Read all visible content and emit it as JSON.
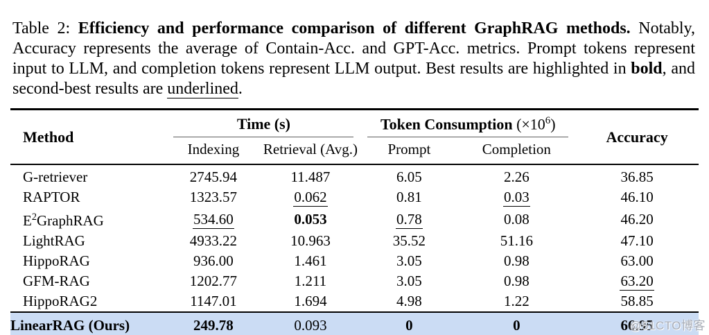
{
  "caption": {
    "prefix": "Table 2: ",
    "bold_title": "Efficiency and performance comparison of different GraphRAG methods.",
    "after_title": " Notably, Accuracy represents the average of Contain-Acc. and GPT-Acc. metrics. Prompt tokens represent input to LLM, and completion tokens represent LLM output. Best results are highlighted in ",
    "bold_word": "bold",
    "mid": ", and second-best results are ",
    "underlined_word": "underlined",
    "end": "."
  },
  "table": {
    "header": {
      "method": "Method",
      "time_group": "Time (s)",
      "token_group": "Token Consumption",
      "token_math_open": " (×10",
      "token_math_sup": "6",
      "token_math_close": ")",
      "accuracy": "Accuracy",
      "sub": [
        "Indexing",
        "Retrieval (Avg.)",
        "Prompt",
        "Completion"
      ]
    },
    "rows": [
      {
        "method": "G-retriever",
        "cells": [
          {
            "t": "2745.94"
          },
          {
            "t": "11.487"
          },
          {
            "t": "6.05"
          },
          {
            "t": "2.26"
          },
          {
            "t": "36.85"
          }
        ]
      },
      {
        "method": "RAPTOR",
        "cells": [
          {
            "t": "1323.57"
          },
          {
            "t": "0.062",
            "u": true
          },
          {
            "t": "0.81"
          },
          {
            "t": "0.03",
            "u": true
          },
          {
            "t": "46.10"
          }
        ]
      },
      {
        "method": "E^2^GraphRAG",
        "cells": [
          {
            "t": "534.60",
            "u": true
          },
          {
            "t": "0.053",
            "b": true
          },
          {
            "t": "0.78",
            "u": true
          },
          {
            "t": "0.08"
          },
          {
            "t": "46.20"
          }
        ]
      },
      {
        "method": "LightRAG",
        "cells": [
          {
            "t": "4933.22"
          },
          {
            "t": "10.963"
          },
          {
            "t": "35.52"
          },
          {
            "t": "51.16"
          },
          {
            "t": "47.10"
          }
        ]
      },
      {
        "method": "HippoRAG",
        "cells": [
          {
            "t": "936.00"
          },
          {
            "t": "1.461"
          },
          {
            "t": "3.05"
          },
          {
            "t": "0.98"
          },
          {
            "t": "63.00"
          }
        ]
      },
      {
        "method": "GFM-RAG",
        "cells": [
          {
            "t": "1202.77"
          },
          {
            "t": "1.211"
          },
          {
            "t": "3.05"
          },
          {
            "t": "0.98"
          },
          {
            "t": "63.20",
            "u": true
          }
        ]
      },
      {
        "method": "HippoRAG2",
        "cells": [
          {
            "t": "1147.01"
          },
          {
            "t": "1.694"
          },
          {
            "t": "4.98"
          },
          {
            "t": "1.22"
          },
          {
            "t": "58.85"
          }
        ]
      }
    ],
    "highlight_row": {
      "method": "LinearRAG (Ours)",
      "method_bold": true,
      "cells": [
        {
          "t": "249.78",
          "b": true
        },
        {
          "t": "0.093"
        },
        {
          "t": "0",
          "b": true
        },
        {
          "t": "0",
          "b": true
        },
        {
          "t": "66.95",
          "b": true
        }
      ]
    }
  },
  "watermark": {
    "text": "@51CTO博客"
  },
  "colors": {
    "highlight_row_bg": "#cbdcf4",
    "rule": "#000000",
    "cmidrule": "#5a5a5a",
    "watermark": "#a7acb6"
  }
}
